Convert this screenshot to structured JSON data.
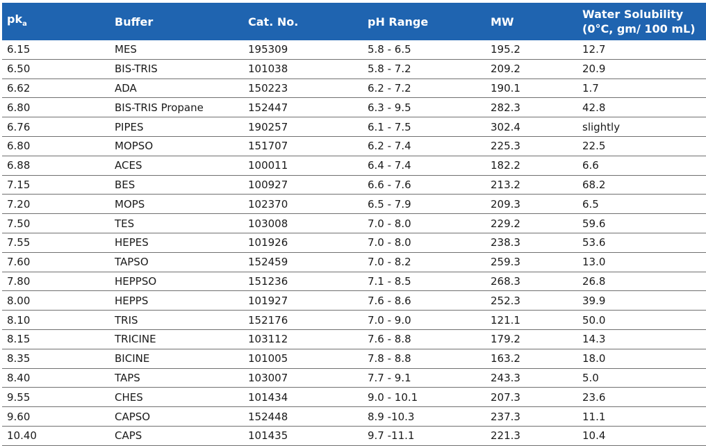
{
  "header": {
    "pka_main": "pk",
    "pka_sub": "a",
    "buffer": "Buffer",
    "cat_no": "Cat. No.",
    "ph_range": "pH Range",
    "mw": "MW",
    "solubility_line1": "Water Solubility",
    "solubility_line2": "(0°C, gm/ 100 mL)"
  },
  "rows": [
    {
      "pka": "6.15",
      "buffer": "MES",
      "cat": "195309",
      "ph": "5.8 - 6.5",
      "mw": "195.2",
      "sol": "12.7"
    },
    {
      "pka": "6.50",
      "buffer": "BIS-TRIS",
      "cat": "101038",
      "ph": "5.8 - 7.2",
      "mw": "209.2",
      "sol": "20.9"
    },
    {
      "pka": "6.62",
      "buffer": "ADA",
      "cat": "150223",
      "ph": "6.2 - 7.2",
      "mw": "190.1",
      "sol": "1.7"
    },
    {
      "pka": "6.80",
      "buffer": "BIS-TRIS Propane",
      "cat": "152447",
      "ph": "6.3 - 9.5",
      "mw": "282.3",
      "sol": "42.8"
    },
    {
      "pka": "6.76",
      "buffer": "PIPES",
      "cat": "190257",
      "ph": "6.1 - 7.5",
      "mw": "302.4",
      "sol": "slightly"
    },
    {
      "pka": "6.80",
      "buffer": "MOPSO",
      "cat": "151707",
      "ph": "6.2 - 7.4",
      "mw": "225.3",
      "sol": "22.5"
    },
    {
      "pka": "6.88",
      "buffer": "ACES",
      "cat": "100011",
      "ph": "6.4 - 7.4",
      "mw": "182.2",
      "sol": "6.6"
    },
    {
      "pka": "7.15",
      "buffer": "BES",
      "cat": "100927",
      "ph": "6.6 - 7.6",
      "mw": "213.2",
      "sol": "68.2"
    },
    {
      "pka": "7.20",
      "buffer": "MOPS",
      "cat": "102370",
      "ph": "6.5 - 7.9",
      "mw": "209.3",
      "sol": "6.5"
    },
    {
      "pka": "7.50",
      "buffer": "TES",
      "cat": "103008",
      "ph": "7.0 - 8.0",
      "mw": "229.2",
      "sol": "59.6"
    },
    {
      "pka": "7.55",
      "buffer": "HEPES",
      "cat": "101926",
      "ph": "7.0 - 8.0",
      "mw": "238.3",
      "sol": "53.6"
    },
    {
      "pka": "7.60",
      "buffer": "TAPSO",
      "cat": "152459",
      "ph": "7.0 - 8.2",
      "mw": "259.3",
      "sol": "13.0"
    },
    {
      "pka": "7.80",
      "buffer": "HEPPSO",
      "cat": "151236",
      "ph": "7.1 - 8.5",
      "mw": "268.3",
      "sol": "26.8"
    },
    {
      "pka": "8.00",
      "buffer": "HEPPS",
      "cat": "101927",
      "ph": "7.6 - 8.6",
      "mw": "252.3",
      "sol": "39.9"
    },
    {
      "pka": "8.10",
      "buffer": "TRIS",
      "cat": "152176",
      "ph": "7.0 - 9.0",
      "mw": "121.1",
      "sol": "50.0"
    },
    {
      "pka": "8.15",
      "buffer": "TRICINE",
      "cat": "103112",
      "ph": "7.6 - 8.8",
      "mw": "179.2",
      "sol": "14.3"
    },
    {
      "pka": "8.35",
      "buffer": "BICINE",
      "cat": "101005",
      "ph": "7.8 - 8.8",
      "mw": "163.2",
      "sol": "18.0"
    },
    {
      "pka": "8.40",
      "buffer": "TAPS",
      "cat": "103007",
      "ph": "7.7 - 9.1",
      "mw": "243.3",
      "sol": "5.0"
    },
    {
      "pka": "9.55",
      "buffer": "CHES",
      "cat": "101434",
      "ph": "9.0 - 10.1",
      "mw": "207.3",
      "sol": "23.6"
    },
    {
      "pka": "9.60",
      "buffer": "CAPSO",
      "cat": "152448",
      "ph": "8.9 -10.3",
      "mw": "237.3",
      "sol": "11.1"
    },
    {
      "pka": "10.40",
      "buffer": "CAPS",
      "cat": "101435",
      "ph": "9.7 -11.1",
      "mw": "221.3",
      "sol": "10.4"
    }
  ],
  "colors": {
    "header_bg": "#1f64b0",
    "header_text": "#ffffff",
    "rule": "#6f6f6f"
  }
}
